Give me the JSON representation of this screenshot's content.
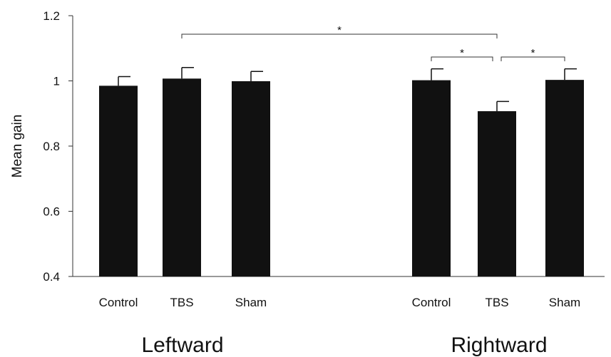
{
  "chart_data": {
    "type": "bar",
    "ylabel": "Mean gain",
    "ylim": [
      0.4,
      1.2
    ],
    "yticks": [
      "0.4",
      "0.6",
      "0.8",
      "1",
      "1.2"
    ],
    "grid": false,
    "bar_color": "#111111",
    "groups": [
      {
        "label": "Leftward",
        "bars": [
          {
            "category": "Control",
            "value": 0.985,
            "error": 0.028
          },
          {
            "category": "TBS",
            "value": 1.007,
            "error": 0.034
          },
          {
            "category": "Sham",
            "value": 0.999,
            "error": 0.03
          }
        ]
      },
      {
        "label": "Rightward",
        "bars": [
          {
            "category": "Control",
            "value": 1.002,
            "error": 0.035
          },
          {
            "category": "TBS",
            "value": 0.907,
            "error": 0.03
          },
          {
            "category": "Sham",
            "value": 1.003,
            "error": 0.034
          }
        ]
      }
    ],
    "significance": [
      {
        "from": "Leftward TBS",
        "to": "Rightward TBS",
        "label": "*"
      },
      {
        "from": "Rightward Control",
        "to": "Rightward TBS",
        "label": "*"
      },
      {
        "from": "Rightward TBS",
        "to": "Rightward Sham",
        "label": "*"
      }
    ]
  }
}
